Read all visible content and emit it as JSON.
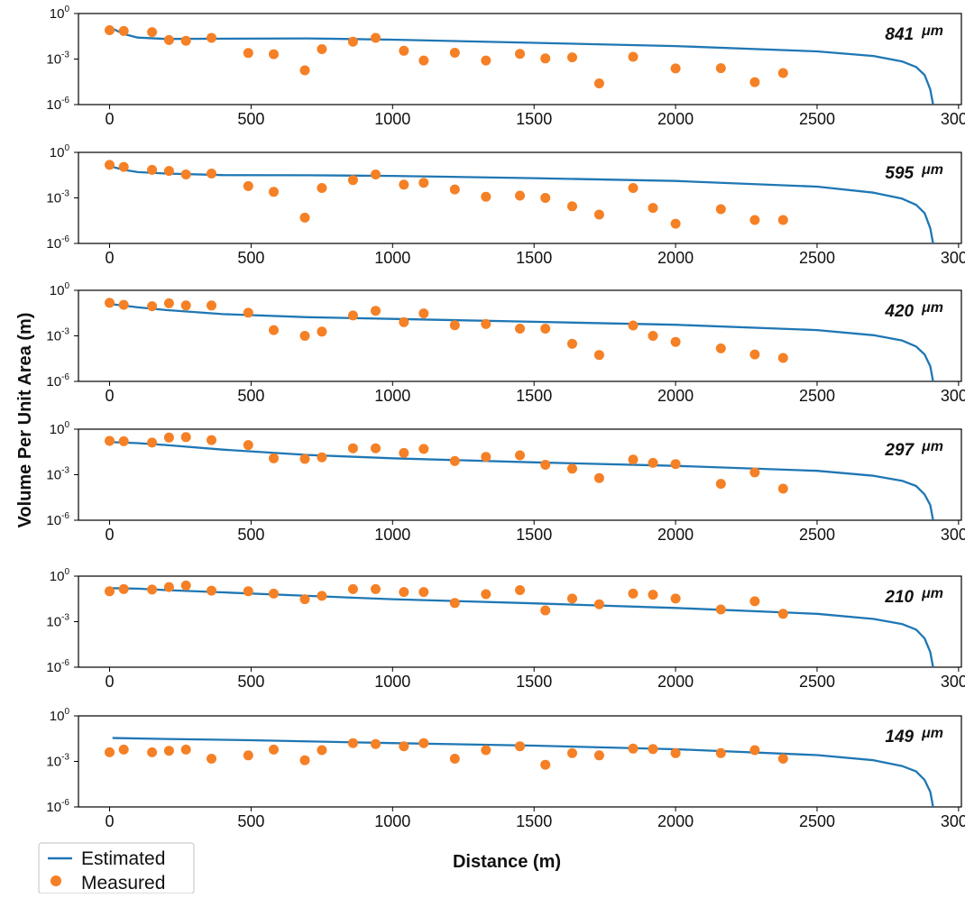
{
  "chart_data": {
    "type": "scatter",
    "xlabel": "Distance (m)",
    "ylabel": "Volume Per Unit Area (m)",
    "xlim": [
      -110,
      3010
    ],
    "ylim": [
      1e-06,
      1
    ],
    "yscale": "log",
    "x_ticks": [
      0,
      500,
      1000,
      1500,
      2000,
      2500,
      3000
    ],
    "x_tick_labels": [
      "0",
      "500",
      "1000",
      "1500",
      "2000",
      "2500",
      "3000"
    ],
    "y_ticks": [
      {
        "value": 1,
        "base": "10",
        "exp": "0"
      },
      {
        "value": 0.001,
        "base": "10",
        "exp": "-3"
      },
      {
        "value": 1e-06,
        "base": "10",
        "exp": "-6"
      }
    ],
    "legend": {
      "position": "bottom-left",
      "entries": [
        {
          "label": "Estimated",
          "kind": "line",
          "color": "#1f77b4"
        },
        {
          "label": "Measured",
          "kind": "marker",
          "color": "#f58025"
        }
      ]
    },
    "colors": {
      "estimated": "#1f77b4",
      "measured": "#f58025"
    },
    "panels": [
      {
        "label": "841",
        "unit": "μm",
        "estimated": [
          [
            10,
            0.1
          ],
          [
            50,
            0.045
          ],
          [
            100,
            0.026
          ],
          [
            200,
            0.021
          ],
          [
            400,
            0.022
          ],
          [
            700,
            0.023
          ],
          [
            1000,
            0.019
          ],
          [
            1500,
            0.0118
          ],
          [
            2000,
            0.0072
          ],
          [
            2500,
            0.0032
          ],
          [
            2700,
            0.0016
          ],
          [
            2800,
            0.0007
          ],
          [
            2850,
            0.0003
          ],
          [
            2880,
            9e-05
          ],
          [
            2900,
            1e-05
          ],
          [
            2910,
            1e-06
          ]
        ],
        "measured": [
          [
            0,
            0.08
          ],
          [
            50,
            0.07
          ],
          [
            150,
            0.06
          ],
          [
            210,
            0.018
          ],
          [
            270,
            0.016
          ],
          [
            360,
            0.025
          ],
          [
            490,
            0.0025
          ],
          [
            580,
            0.0021
          ],
          [
            690,
            0.00018
          ],
          [
            750,
            0.0045
          ],
          [
            860,
            0.014
          ],
          [
            940,
            0.025
          ],
          [
            1040,
            0.0035
          ],
          [
            1110,
            0.0008
          ],
          [
            1220,
            0.0026
          ],
          [
            1330,
            0.0008
          ],
          [
            1450,
            0.0022
          ],
          [
            1540,
            0.0011
          ],
          [
            1635,
            0.0013
          ],
          [
            1730,
            2.5e-05
          ],
          [
            1850,
            0.0014
          ],
          [
            2000,
            0.00024
          ],
          [
            2160,
            0.00025
          ],
          [
            2280,
            3e-05
          ],
          [
            2380,
            0.00012
          ]
        ]
      },
      {
        "label": "595",
        "unit": "μm",
        "estimated": [
          [
            10,
            0.11
          ],
          [
            50,
            0.07
          ],
          [
            100,
            0.05
          ],
          [
            200,
            0.04
          ],
          [
            400,
            0.032
          ],
          [
            700,
            0.031
          ],
          [
            1000,
            0.028
          ],
          [
            1500,
            0.02
          ],
          [
            2000,
            0.013
          ],
          [
            2500,
            0.0055
          ],
          [
            2700,
            0.0022
          ],
          [
            2800,
            0.0009
          ],
          [
            2850,
            0.00035
          ],
          [
            2880,
            0.0001
          ],
          [
            2900,
            1e-05
          ],
          [
            2910,
            1e-06
          ]
        ],
        "measured": [
          [
            0,
            0.15
          ],
          [
            50,
            0.11
          ],
          [
            150,
            0.07
          ],
          [
            210,
            0.06
          ],
          [
            270,
            0.035
          ],
          [
            360,
            0.04
          ],
          [
            490,
            0.006
          ],
          [
            580,
            0.0025
          ],
          [
            690,
            5e-05
          ],
          [
            750,
            0.0045
          ],
          [
            860,
            0.015
          ],
          [
            940,
            0.035
          ],
          [
            1040,
            0.0075
          ],
          [
            1110,
            0.01
          ],
          [
            1220,
            0.0036
          ],
          [
            1330,
            0.0012
          ],
          [
            1450,
            0.0014
          ],
          [
            1540,
            0.001
          ],
          [
            1635,
            0.00028
          ],
          [
            1730,
            8e-05
          ],
          [
            1850,
            0.0045
          ],
          [
            1920,
            0.00022
          ],
          [
            2000,
            2e-05
          ],
          [
            2160,
            0.00018
          ],
          [
            2280,
            3.5e-05
          ],
          [
            2380,
            3.5e-05
          ]
        ]
      },
      {
        "label": "420",
        "unit": "μm",
        "estimated": [
          [
            10,
            0.12
          ],
          [
            100,
            0.075
          ],
          [
            200,
            0.05
          ],
          [
            400,
            0.027
          ],
          [
            700,
            0.017
          ],
          [
            1000,
            0.013
          ],
          [
            1500,
            0.0085
          ],
          [
            2000,
            0.0054
          ],
          [
            2500,
            0.0024
          ],
          [
            2700,
            0.0011
          ],
          [
            2800,
            0.0005
          ],
          [
            2850,
            0.0002
          ],
          [
            2880,
            6e-05
          ],
          [
            2900,
            1e-05
          ],
          [
            2910,
            1e-06
          ]
        ],
        "measured": [
          [
            0,
            0.15
          ],
          [
            50,
            0.11
          ],
          [
            150,
            0.09
          ],
          [
            210,
            0.14
          ],
          [
            270,
            0.1
          ],
          [
            360,
            0.1
          ],
          [
            490,
            0.033
          ],
          [
            580,
            0.0024
          ],
          [
            690,
            0.001
          ],
          [
            750,
            0.0019
          ],
          [
            860,
            0.022
          ],
          [
            940,
            0.045
          ],
          [
            1040,
            0.008
          ],
          [
            1110,
            0.03
          ],
          [
            1220,
            0.005
          ],
          [
            1330,
            0.006
          ],
          [
            1450,
            0.003
          ],
          [
            1540,
            0.003
          ],
          [
            1635,
            0.0003
          ],
          [
            1730,
            5.5e-05
          ],
          [
            1850,
            0.0048
          ],
          [
            1920,
            0.001
          ],
          [
            2000,
            0.0004
          ],
          [
            2160,
            0.00015
          ],
          [
            2280,
            6e-05
          ],
          [
            2380,
            3.5e-05
          ]
        ]
      },
      {
        "label": "297",
        "unit": "μm",
        "estimated": [
          [
            10,
            0.14
          ],
          [
            100,
            0.12
          ],
          [
            200,
            0.09
          ],
          [
            400,
            0.045
          ],
          [
            700,
            0.02
          ],
          [
            1000,
            0.012
          ],
          [
            1500,
            0.0065
          ],
          [
            2000,
            0.0038
          ],
          [
            2500,
            0.0018
          ],
          [
            2700,
            0.00085
          ],
          [
            2800,
            0.0004
          ],
          [
            2850,
            0.00018
          ],
          [
            2880,
            5e-05
          ],
          [
            2900,
            1e-05
          ],
          [
            2910,
            1e-06
          ]
        ],
        "measured": [
          [
            0,
            0.17
          ],
          [
            50,
            0.16
          ],
          [
            150,
            0.13
          ],
          [
            210,
            0.28
          ],
          [
            270,
            0.3
          ],
          [
            360,
            0.19
          ],
          [
            490,
            0.09
          ],
          [
            580,
            0.012
          ],
          [
            690,
            0.011
          ],
          [
            750,
            0.014
          ],
          [
            860,
            0.055
          ],
          [
            940,
            0.055
          ],
          [
            1040,
            0.027
          ],
          [
            1110,
            0.05
          ],
          [
            1220,
            0.008
          ],
          [
            1330,
            0.015
          ],
          [
            1450,
            0.019
          ],
          [
            1540,
            0.0045
          ],
          [
            1635,
            0.0025
          ],
          [
            1730,
            0.0006
          ],
          [
            1850,
            0.01
          ],
          [
            1920,
            0.006
          ],
          [
            2000,
            0.005
          ],
          [
            2160,
            0.00025
          ],
          [
            2280,
            0.0014
          ],
          [
            2380,
            0.00012
          ]
        ]
      },
      {
        "label": "210",
        "unit": "μm",
        "estimated": [
          [
            10,
            0.16
          ],
          [
            100,
            0.15
          ],
          [
            200,
            0.12
          ],
          [
            400,
            0.085
          ],
          [
            700,
            0.05
          ],
          [
            1000,
            0.03
          ],
          [
            1500,
            0.016
          ],
          [
            2000,
            0.008
          ],
          [
            2500,
            0.0033
          ],
          [
            2700,
            0.0015
          ],
          [
            2800,
            0.0007
          ],
          [
            2850,
            0.0003
          ],
          [
            2880,
            8e-05
          ],
          [
            2900,
            1e-05
          ],
          [
            2910,
            1e-06
          ]
        ],
        "measured": [
          [
            0,
            0.1
          ],
          [
            50,
            0.14
          ],
          [
            150,
            0.13
          ],
          [
            210,
            0.19
          ],
          [
            270,
            0.24
          ],
          [
            360,
            0.11
          ],
          [
            490,
            0.1
          ],
          [
            580,
            0.07
          ],
          [
            690,
            0.03
          ],
          [
            750,
            0.05
          ],
          [
            860,
            0.14
          ],
          [
            940,
            0.14
          ],
          [
            1040,
            0.09
          ],
          [
            1110,
            0.09
          ],
          [
            1220,
            0.017
          ],
          [
            1330,
            0.065
          ],
          [
            1450,
            0.12
          ],
          [
            1540,
            0.0055
          ],
          [
            1635,
            0.033
          ],
          [
            1730,
            0.014
          ],
          [
            1850,
            0.07
          ],
          [
            1920,
            0.06
          ],
          [
            2000,
            0.033
          ],
          [
            2160,
            0.0063
          ],
          [
            2280,
            0.022
          ],
          [
            2380,
            0.0033
          ]
        ]
      },
      {
        "label": "149",
        "unit": "μm",
        "estimated": [
          [
            10,
            0.035
          ],
          [
            200,
            0.03
          ],
          [
            500,
            0.025
          ],
          [
            1000,
            0.016
          ],
          [
            1500,
            0.011
          ],
          [
            2000,
            0.0063
          ],
          [
            2500,
            0.0026
          ],
          [
            2700,
            0.0012
          ],
          [
            2800,
            0.0005
          ],
          [
            2850,
            0.00022
          ],
          [
            2880,
            6e-05
          ],
          [
            2900,
            1e-05
          ],
          [
            2910,
            1e-06
          ]
        ],
        "measured": [
          [
            0,
            0.004
          ],
          [
            50,
            0.006
          ],
          [
            150,
            0.004
          ],
          [
            210,
            0.005
          ],
          [
            270,
            0.006
          ],
          [
            360,
            0.0015
          ],
          [
            490,
            0.0025
          ],
          [
            580,
            0.006
          ],
          [
            690,
            0.0012
          ],
          [
            750,
            0.0055
          ],
          [
            860,
            0.016
          ],
          [
            940,
            0.014
          ],
          [
            1040,
            0.01
          ],
          [
            1110,
            0.016
          ],
          [
            1220,
            0.0015
          ],
          [
            1330,
            0.0055
          ],
          [
            1450,
            0.01
          ],
          [
            1540,
            0.0006
          ],
          [
            1635,
            0.0035
          ],
          [
            1730,
            0.0025
          ],
          [
            1850,
            0.007
          ],
          [
            1920,
            0.0065
          ],
          [
            2000,
            0.0035
          ],
          [
            2160,
            0.0035
          ],
          [
            2280,
            0.0055
          ],
          [
            2380,
            0.0015
          ]
        ]
      }
    ]
  }
}
